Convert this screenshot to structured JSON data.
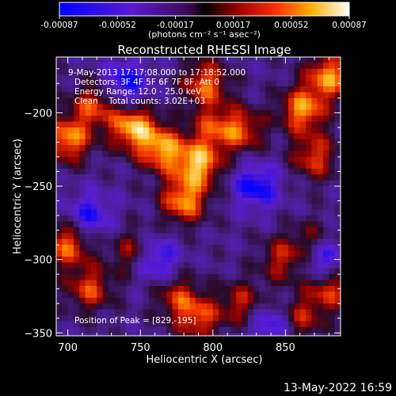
{
  "colorbar": {
    "ticks": [
      "-0.00087",
      "-0.00052",
      "-0.00017",
      "0.00017",
      "0.00052",
      "0.00087"
    ],
    "units": "(photons cm⁻² s⁻¹ asec⁻²)"
  },
  "info": {
    "time": "9-May-2013 17:17:08.000 to 17:18:52.000",
    "detectors": "Detectors: 3F 4F 5F 6F 7F 8F, Att 0",
    "energy": "Energy Range: 12.0 - 25.0 keV",
    "clean": "Clean    Total counts: 3.02E+03",
    "peak": "Position of Peak = [829,-195]"
  },
  "footer": {
    "timestamp": "13-May-2022 16:59"
  },
  "chart_data": {
    "type": "heatmap",
    "title": "Reconstructed RHESSI Image",
    "xlabel": "Heliocentric X (arcsec)",
    "ylabel": "Heliocentric Y (arcsec)",
    "xlim": [
      692,
      888
    ],
    "ylim": [
      -352,
      -162
    ],
    "xticks": [
      700,
      750,
      800,
      850
    ],
    "yticks": [
      -350,
      -300,
      -250,
      -200
    ],
    "zlim": [
      -0.00087,
      0.00087
    ],
    "colormap": "blue-purple-black-red-orange-yellow-white",
    "hotspots": [
      {
        "x": 700,
        "y": -218,
        "value": 0.0008
      },
      {
        "x": 718,
        "y": -195,
        "value": 0.0006
      },
      {
        "x": 745,
        "y": -210,
        "value": 0.0009
      },
      {
        "x": 765,
        "y": -225,
        "value": 0.0008
      },
      {
        "x": 790,
        "y": -235,
        "value": 0.00087
      },
      {
        "x": 780,
        "y": -260,
        "value": 0.0008
      },
      {
        "x": 800,
        "y": -210,
        "value": 0.0005
      },
      {
        "x": 795,
        "y": -180,
        "value": 0.0007
      },
      {
        "x": 820,
        "y": -212,
        "value": 0.0006
      },
      {
        "x": 862,
        "y": -198,
        "value": 0.0008
      },
      {
        "x": 880,
        "y": -175,
        "value": 0.0008
      },
      {
        "x": 870,
        "y": -230,
        "value": 0.0006
      },
      {
        "x": 700,
        "y": -290,
        "value": 0.0007
      },
      {
        "x": 715,
        "y": -320,
        "value": 0.0006
      },
      {
        "x": 745,
        "y": -295,
        "value": 0.0005
      },
      {
        "x": 775,
        "y": -325,
        "value": 0.0005
      },
      {
        "x": 790,
        "y": -340,
        "value": 0.0006
      },
      {
        "x": 820,
        "y": -330,
        "value": 0.0005
      },
      {
        "x": 848,
        "y": -300,
        "value": 0.0005
      },
      {
        "x": 870,
        "y": -290,
        "value": 0.0006
      },
      {
        "x": 880,
        "y": -320,
        "value": 0.0006
      },
      {
        "x": 860,
        "y": -340,
        "value": 0.0005
      }
    ],
    "coldspots": [
      {
        "x": 875,
        "y": -298,
        "value": -0.0008
      },
      {
        "x": 760,
        "y": -300,
        "value": -0.0006
      },
      {
        "x": 715,
        "y": -270,
        "value": -0.0005
      },
      {
        "x": 830,
        "y": -250,
        "value": -0.0006
      },
      {
        "x": 740,
        "y": -180,
        "value": -0.0006
      },
      {
        "x": 840,
        "y": -345,
        "value": -0.0005
      }
    ]
  }
}
